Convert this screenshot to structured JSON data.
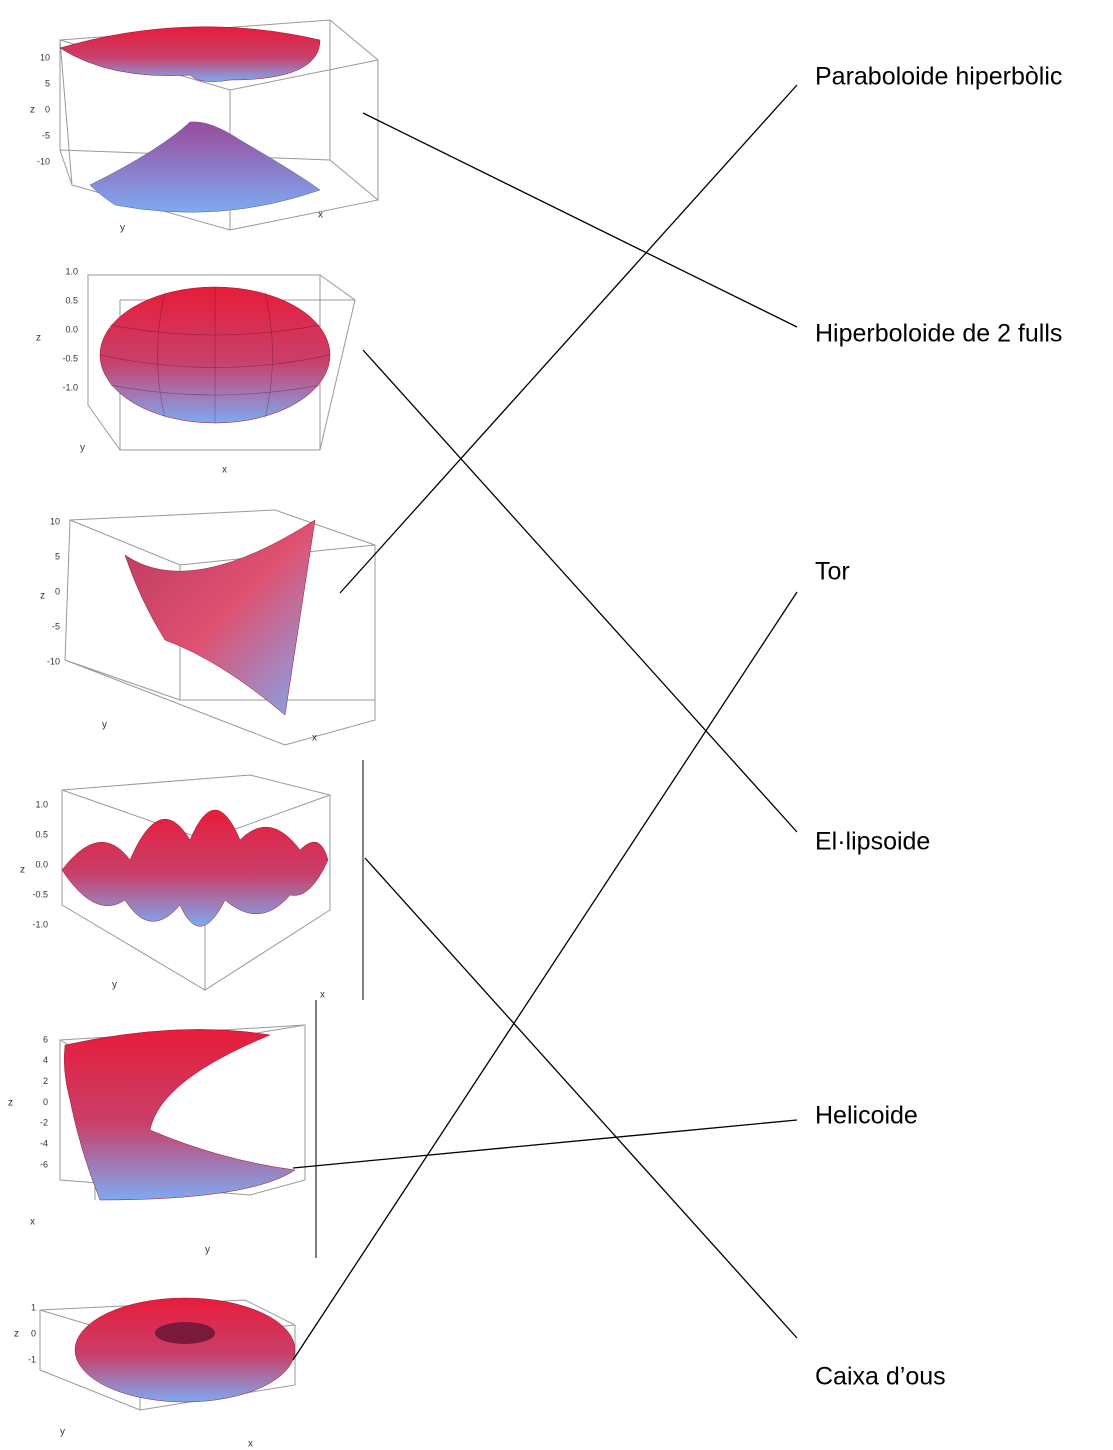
{
  "labels": [
    "Paraboloide hiperbòlic",
    "Hiperboloide de 2 fulls",
    "Tor",
    "El·lipsoide",
    "Helicoide",
    "Caixa d’ous"
  ],
  "plots": [
    {
      "z_axis": "z",
      "x_axis": "x",
      "y_axis": "y",
      "z_ticks": [
        "10",
        "5",
        "0",
        "-5",
        "-10"
      ]
    },
    {
      "z_axis": "z",
      "x_axis": "x",
      "y_axis": "y",
      "z_ticks": [
        "1.0",
        "0.5",
        "0.0",
        "-0.5",
        "-1.0"
      ]
    },
    {
      "z_axis": "z",
      "x_axis": "x",
      "y_axis": "y",
      "z_ticks": [
        "10",
        "5",
        "0",
        "-5",
        "-10"
      ]
    },
    {
      "z_axis": "z",
      "x_axis": "x",
      "y_axis": "y",
      "z_ticks": [
        "1.0",
        "0.5",
        "0.0",
        "-0.5",
        "-1.0"
      ]
    },
    {
      "z_axis": "z",
      "x_axis": "x",
      "y_axis": "y",
      "z_ticks": [
        "6",
        "4",
        "2",
        "0",
        "-2",
        "-4",
        "-6"
      ]
    },
    {
      "z_axis": "z",
      "x_axis": "x",
      "y_axis": "y",
      "z_ticks": [
        "1",
        "0",
        "-1"
      ]
    }
  ]
}
